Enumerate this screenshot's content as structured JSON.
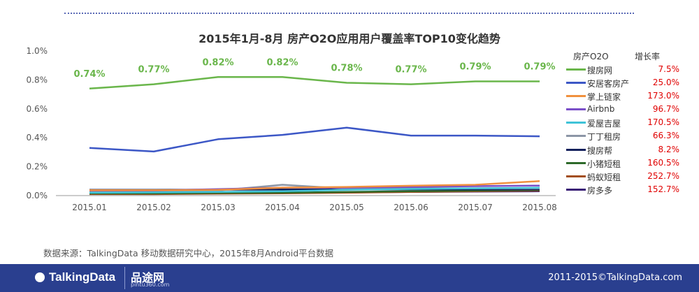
{
  "chart_data": {
    "type": "line",
    "title": "2015年1月-8月 房产O2O应用用户覆盖率TOP10变化趋势",
    "x": [
      "2015.01",
      "2015.02",
      "2015.03",
      "2015.04",
      "2015.05",
      "2015.06",
      "2015.07",
      "2015.08"
    ],
    "yticks": [
      "1.0%",
      "0.8%",
      "0.6%",
      "0.4%",
      "0.2%",
      "0.0%"
    ],
    "ylim": [
      0,
      1.0
    ],
    "grid": false,
    "legend_placement": "right",
    "legend_header": {
      "name": "房产O2O",
      "growth": "增长率"
    },
    "data_labels": [
      "0.74%",
      "0.77%",
      "0.82%",
      "0.82%",
      "0.78%",
      "0.77%",
      "0.79%",
      "0.79%"
    ],
    "series": [
      {
        "name": "搜房网",
        "growth": "7.5%",
        "color": "#6ab64b",
        "values": [
          0.74,
          0.77,
          0.82,
          0.82,
          0.78,
          0.77,
          0.79,
          0.79
        ]
      },
      {
        "name": "安居客房产",
        "growth": "25.0%",
        "color": "#3c57c6",
        "values": [
          0.33,
          0.305,
          0.39,
          0.42,
          0.47,
          0.415,
          0.415,
          0.41
        ]
      },
      {
        "name": "掌上链家",
        "growth": "173.0%",
        "color": "#f0903e",
        "values": [
          0.037,
          0.037,
          0.04,
          0.055,
          0.06,
          0.068,
          0.075,
          0.1
        ]
      },
      {
        "name": "Airbnb",
        "growth": "96.7%",
        "color": "#7a4fc8",
        "values": [
          0.035,
          0.035,
          0.045,
          0.055,
          0.055,
          0.06,
          0.065,
          0.069
        ]
      },
      {
        "name": "爱屋吉屋",
        "growth": "170.5%",
        "color": "#3fc3d8",
        "values": [
          0.02,
          0.022,
          0.025,
          0.03,
          0.04,
          0.046,
          0.05,
          0.054
        ]
      },
      {
        "name": "丁丁租房",
        "growth": "66.3%",
        "color": "#8c96a6",
        "values": [
          0.03,
          0.03,
          0.035,
          0.075,
          0.048,
          0.05,
          0.05,
          0.05
        ]
      },
      {
        "name": "搜房帮",
        "growth": "8.2%",
        "color": "#14215c",
        "values": [
          0.04,
          0.04,
          0.041,
          0.042,
          0.042,
          0.043,
          0.043,
          0.043
        ]
      },
      {
        "name": "小猪短租",
        "growth": "160.5%",
        "color": "#2e6a2a",
        "values": [
          0.015,
          0.015,
          0.018,
          0.02,
          0.025,
          0.03,
          0.035,
          0.039
        ]
      },
      {
        "name": "蚂蚁短租",
        "growth": "252.7%",
        "color": "#a24e1c",
        "values": [
          0.01,
          0.01,
          0.013,
          0.016,
          0.02,
          0.025,
          0.03,
          0.035
        ]
      },
      {
        "name": "房多多",
        "growth": "152.7%",
        "color": "#3a1f76",
        "values": [
          0.012,
          0.012,
          0.015,
          0.018,
          0.022,
          0.025,
          0.028,
          0.03
        ]
      }
    ]
  },
  "source_note": "数据来源：TalkingData 移动数据研究中心，2015年8月Android平台数据",
  "footer": {
    "logo_text": "TalkingData",
    "partner_logo_cn": "品途网",
    "partner_logo_en": "pintu360.com",
    "copyright": "2011-2015©TalkingData.com"
  },
  "colors": {
    "footer_bg": "#2a3f8f",
    "label_green": "#6ab64b",
    "growth_red": "#e00000"
  }
}
